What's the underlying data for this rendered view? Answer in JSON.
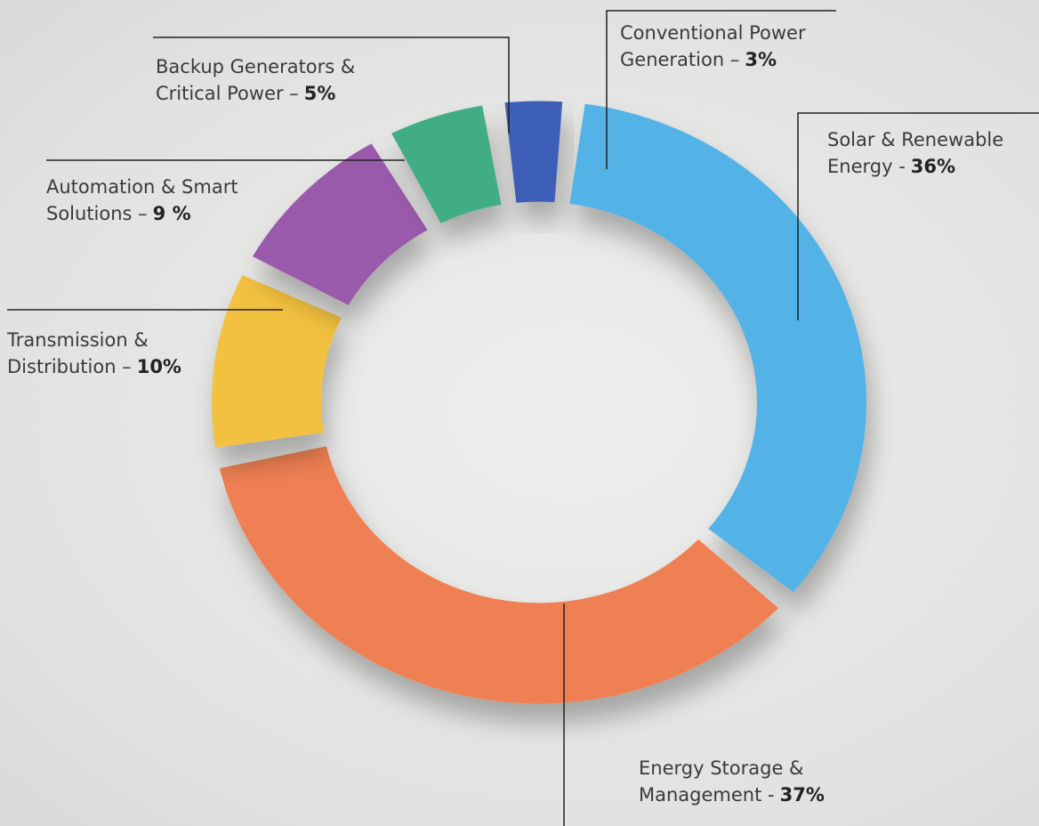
{
  "chart_data": {
    "type": "donut",
    "categories": [
      "Conventional Power Generation –",
      "Solar & Renewable Energy  -",
      "Energy Storage & Management  -",
      "Transmission & Distribution –",
      "Automation & Smart Solutions –",
      "Backup Generators & Critical Power –"
    ],
    "values": [
      3,
      36,
      37,
      10,
      9,
      5
    ],
    "value_labels": [
      "3%",
      "36%",
      "37%",
      "10%",
      "9 %",
      "5%"
    ],
    "colors": [
      "#3d5fb8",
      "#52b2e6",
      "#ef8052",
      "#f3c13f",
      "#9a5aac",
      "#41ad84"
    ]
  }
}
